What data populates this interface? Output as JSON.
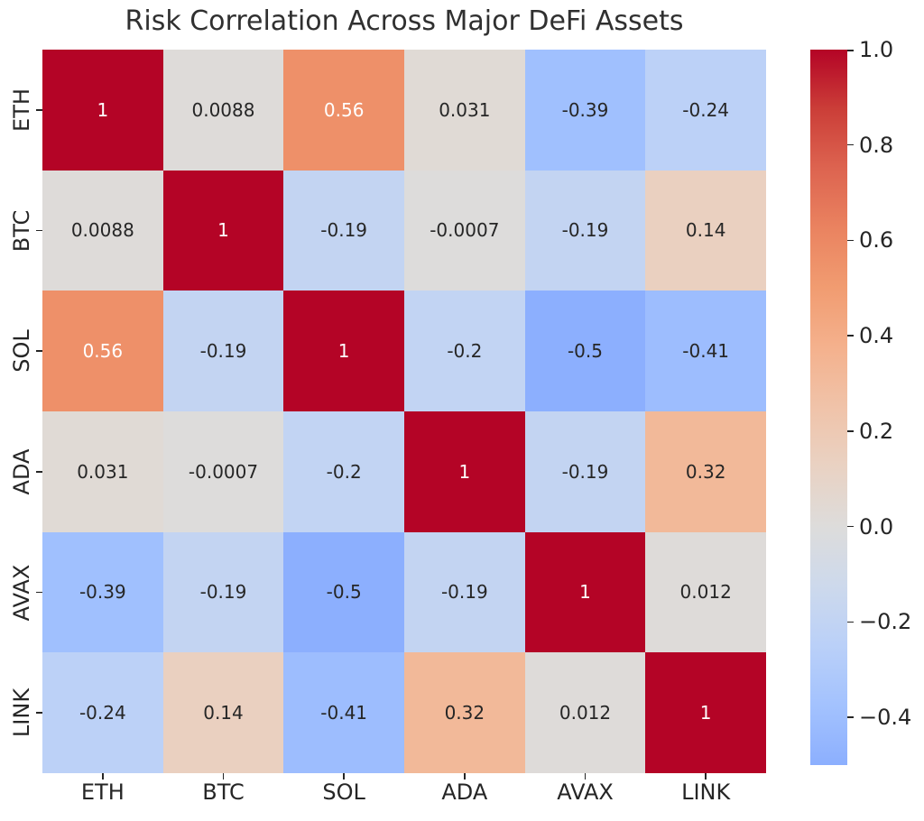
{
  "title": "Risk Correlation Across Major DeFi Assets",
  "chart_data": {
    "type": "heatmap",
    "categories": [
      "ETH",
      "BTC",
      "SOL",
      "ADA",
      "AVAX",
      "LINK"
    ],
    "x_tick_labels": [
      "ETH",
      "BTC",
      "SOL",
      "ADA",
      "AVAX",
      "LINK"
    ],
    "y_tick_labels": [
      "ETH",
      "BTC",
      "SOL",
      "ADA",
      "AVAX",
      "LINK"
    ],
    "matrix": [
      [
        1,
        0.0088,
        0.56,
        0.031,
        -0.39,
        -0.24
      ],
      [
        0.0088,
        1,
        -0.19,
        -0.0007,
        -0.19,
        0.14
      ],
      [
        0.56,
        -0.19,
        1,
        -0.2,
        -0.5,
        -0.41
      ],
      [
        0.031,
        -0.0007,
        -0.2,
        1,
        -0.19,
        0.32
      ],
      [
        -0.39,
        -0.19,
        -0.5,
        -0.19,
        1,
        0.012
      ],
      [
        -0.24,
        0.14,
        -0.41,
        0.32,
        0.012,
        1
      ]
    ],
    "cell_labels": [
      [
        "1",
        "0.0088",
        "0.56",
        "0.031",
        "-0.39",
        "-0.24"
      ],
      [
        "0.0088",
        "1",
        "-0.19",
        "-0.0007",
        "-0.19",
        "0.14"
      ],
      [
        "0.56",
        "-0.19",
        "1",
        "-0.2",
        "-0.5",
        "-0.41"
      ],
      [
        "0.031",
        "-0.0007",
        "-0.2",
        "1",
        "-0.19",
        "0.32"
      ],
      [
        "-0.39",
        "-0.19",
        "-0.5",
        "-0.19",
        "1",
        "0.012"
      ],
      [
        "-0.24",
        "0.14",
        "-0.41",
        "0.32",
        "0.012",
        "1"
      ]
    ],
    "vmin": -0.5,
    "vmax": 1.0,
    "center": 0,
    "grid_on": false,
    "legend_position": "right-colorbar",
    "colorbar_ticks": [
      {
        "value": 1.0,
        "label": "1.0"
      },
      {
        "value": 0.8,
        "label": "0.8"
      },
      {
        "value": 0.6,
        "label": "0.6"
      },
      {
        "value": 0.4,
        "label": "0.4"
      },
      {
        "value": 0.2,
        "label": "0.2"
      },
      {
        "value": 0.0,
        "label": "0.0"
      },
      {
        "value": -0.2,
        "label": "−0.2"
      },
      {
        "value": -0.4,
        "label": "−0.4"
      }
    ],
    "colormap": {
      "name": "coolwarm",
      "stops": [
        {
          "t": 0.0,
          "color": "#3b4cc0"
        },
        {
          "t": 0.125,
          "color": "#6687ed"
        },
        {
          "t": 0.25,
          "color": "#8caffe"
        },
        {
          "t": 0.3125,
          "color": "#a3c2fe"
        },
        {
          "t": 0.375,
          "color": "#bad0f8"
        },
        {
          "t": 0.4375,
          "color": "#cdd9ec"
        },
        {
          "t": 0.5,
          "color": "#dddcdb"
        },
        {
          "t": 0.5625,
          "color": "#e9d2c3"
        },
        {
          "t": 0.625,
          "color": "#f0c3a9"
        },
        {
          "t": 0.6875,
          "color": "#f4b18d"
        },
        {
          "t": 0.75,
          "color": "#f19c71"
        },
        {
          "t": 0.8125,
          "color": "#ea8360"
        },
        {
          "t": 0.875,
          "color": "#dd6450"
        },
        {
          "t": 0.9375,
          "color": "#cb3e38"
        },
        {
          "t": 1.0,
          "color": "#b40426"
        }
      ]
    },
    "annotation_text_colors": {
      "dark": "#262626",
      "light": "#ffffff"
    },
    "tick_color": "#262626"
  }
}
